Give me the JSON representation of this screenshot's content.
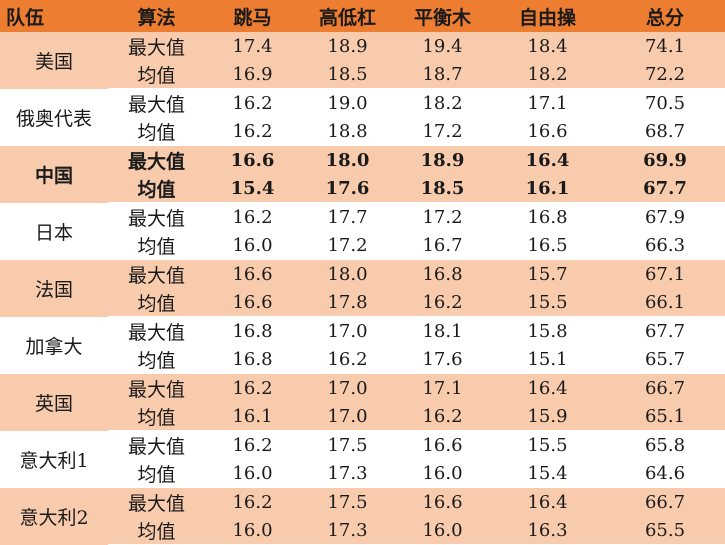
{
  "header": {
    "team": "队伍",
    "algorithm": "算法",
    "vault": "跳马",
    "bars": "高低杠",
    "beam": "平衡木",
    "floor": "自由操",
    "total": "总分"
  },
  "teams": [
    {
      "name": "美国",
      "bold": false,
      "rows": [
        {
          "algo": "最大值",
          "vault": "17.4",
          "bars": "18.9",
          "beam": "19.4",
          "floor": "18.4",
          "total": "74.1"
        },
        {
          "algo": "均值",
          "vault": "16.9",
          "bars": "18.5",
          "beam": "18.7",
          "floor": "18.2",
          "total": "72.2"
        }
      ]
    },
    {
      "name": "俄奥代表",
      "bold": false,
      "rows": [
        {
          "algo": "最大值",
          "vault": "16.2",
          "bars": "19.0",
          "beam": "18.2",
          "floor": "17.1",
          "total": "70.5"
        },
        {
          "algo": "均值",
          "vault": "16.2",
          "bars": "18.8",
          "beam": "17.2",
          "floor": "16.6",
          "total": "68.7"
        }
      ]
    },
    {
      "name": "中国",
      "bold": true,
      "rows": [
        {
          "algo": "最大值",
          "vault": "16.6",
          "bars": "18.0",
          "beam": "18.9",
          "floor": "16.4",
          "total": "69.9"
        },
        {
          "algo": "均值",
          "vault": "15.4",
          "bars": "17.6",
          "beam": "18.5",
          "floor": "16.1",
          "total": "67.7"
        }
      ]
    },
    {
      "name": "日本",
      "bold": false,
      "rows": [
        {
          "algo": "最大值",
          "vault": "16.2",
          "bars": "17.7",
          "beam": "17.2",
          "floor": "16.8",
          "total": "67.9"
        },
        {
          "algo": "均值",
          "vault": "16.0",
          "bars": "17.2",
          "beam": "16.7",
          "floor": "16.5",
          "total": "66.3"
        }
      ]
    },
    {
      "name": "法国",
      "bold": false,
      "rows": [
        {
          "algo": "最大值",
          "vault": "16.6",
          "bars": "18.0",
          "beam": "16.8",
          "floor": "15.7",
          "total": "67.1"
        },
        {
          "algo": "均值",
          "vault": "16.6",
          "bars": "17.8",
          "beam": "16.2",
          "floor": "15.5",
          "total": "66.1"
        }
      ]
    },
    {
      "name": "加拿大",
      "bold": false,
      "rows": [
        {
          "algo": "最大值",
          "vault": "16.8",
          "bars": "17.0",
          "beam": "18.1",
          "floor": "15.8",
          "total": "67.7"
        },
        {
          "algo": "均值",
          "vault": "16.8",
          "bars": "16.2",
          "beam": "17.6",
          "floor": "15.1",
          "total": "65.7"
        }
      ]
    },
    {
      "name": "英国",
      "bold": false,
      "rows": [
        {
          "algo": "最大值",
          "vault": "16.2",
          "bars": "17.0",
          "beam": "17.1",
          "floor": "16.4",
          "total": "66.7"
        },
        {
          "algo": "均值",
          "vault": "16.1",
          "bars": "17.0",
          "beam": "16.2",
          "floor": "15.9",
          "total": "65.1"
        }
      ]
    },
    {
      "name": "意大利1",
      "bold": false,
      "rows": [
        {
          "algo": "最大值",
          "vault": "16.2",
          "bars": "17.5",
          "beam": "16.6",
          "floor": "15.5",
          "total": "65.8"
        },
        {
          "algo": "均值",
          "vault": "16.0",
          "bars": "17.3",
          "beam": "16.0",
          "floor": "15.4",
          "total": "64.6"
        }
      ]
    },
    {
      "name": "意大利2",
      "bold": false,
      "rows": [
        {
          "algo": "最大值",
          "vault": "16.2",
          "bars": "17.5",
          "beam": "16.6",
          "floor": "16.4",
          "total": "66.7"
        },
        {
          "algo": "均值",
          "vault": "16.0",
          "bars": "17.3",
          "beam": "16.0",
          "floor": "16.3",
          "total": "65.5"
        }
      ]
    }
  ]
}
